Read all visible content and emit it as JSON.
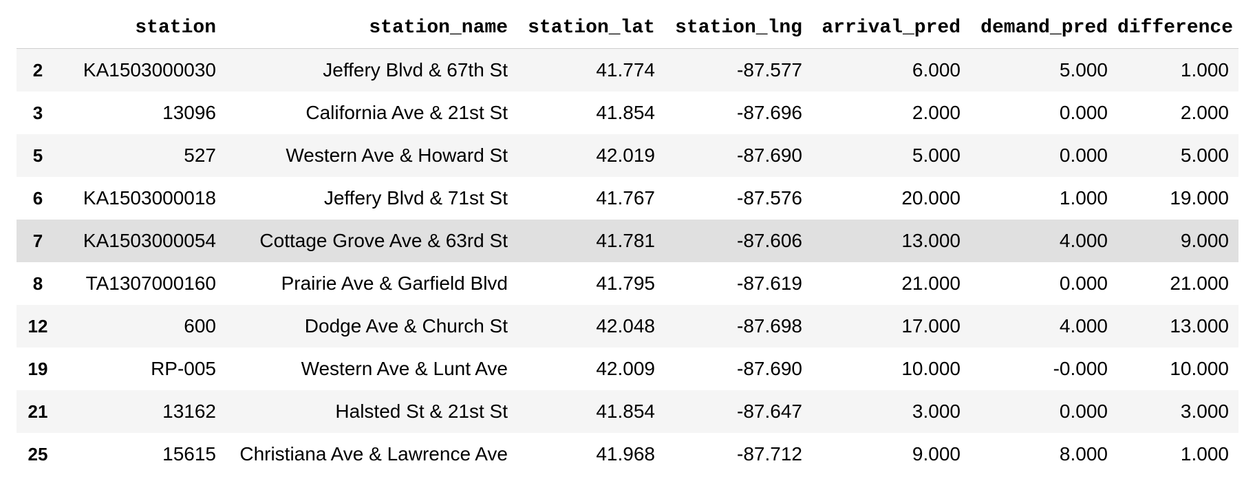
{
  "table": {
    "columns": [
      "",
      "station",
      "station_name",
      "station_lat",
      "station_lng",
      "arrival_pred",
      "demand_pred",
      "difference"
    ],
    "rows": [
      {
        "index": "2",
        "station": "KA1503000030",
        "station_name": "Jeffery Blvd & 67th St",
        "station_lat": "41.774",
        "station_lng": "-87.577",
        "arrival_pred": "6.000",
        "demand_pred": "5.000",
        "difference": "1.000"
      },
      {
        "index": "3",
        "station": "13096",
        "station_name": "California Ave & 21st St",
        "station_lat": "41.854",
        "station_lng": "-87.696",
        "arrival_pred": "2.000",
        "demand_pred": "0.000",
        "difference": "2.000"
      },
      {
        "index": "5",
        "station": "527",
        "station_name": "Western Ave & Howard St",
        "station_lat": "42.019",
        "station_lng": "-87.690",
        "arrival_pred": "5.000",
        "demand_pred": "0.000",
        "difference": "5.000"
      },
      {
        "index": "6",
        "station": "KA1503000018",
        "station_name": "Jeffery Blvd & 71st St",
        "station_lat": "41.767",
        "station_lng": "-87.576",
        "arrival_pred": "20.000",
        "demand_pred": "1.000",
        "difference": "19.000"
      },
      {
        "index": "7",
        "station": "KA1503000054",
        "station_name": "Cottage Grove Ave & 63rd St",
        "station_lat": "41.781",
        "station_lng": "-87.606",
        "arrival_pred": "13.000",
        "demand_pred": "4.000",
        "difference": "9.000"
      },
      {
        "index": "8",
        "station": "TA1307000160",
        "station_name": "Prairie Ave & Garfield Blvd",
        "station_lat": "41.795",
        "station_lng": "-87.619",
        "arrival_pred": "21.000",
        "demand_pred": "0.000",
        "difference": "21.000"
      },
      {
        "index": "12",
        "station": "600",
        "station_name": "Dodge Ave & Church St",
        "station_lat": "42.048",
        "station_lng": "-87.698",
        "arrival_pred": "17.000",
        "demand_pred": "4.000",
        "difference": "13.000"
      },
      {
        "index": "19",
        "station": "RP-005",
        "station_name": "Western Ave & Lunt Ave",
        "station_lat": "42.009",
        "station_lng": "-87.690",
        "arrival_pred": "10.000",
        "demand_pred": "-0.000",
        "difference": "10.000"
      },
      {
        "index": "21",
        "station": "13162",
        "station_name": "Halsted St & 21st St",
        "station_lat": "41.854",
        "station_lng": "-87.647",
        "arrival_pred": "3.000",
        "demand_pred": "0.000",
        "difference": "3.000"
      },
      {
        "index": "25",
        "station": "15615",
        "station_name": "Christiana Ave & Lawrence Ave",
        "station_lat": "41.968",
        "station_lng": "-87.712",
        "arrival_pred": "9.000",
        "demand_pred": "8.000",
        "difference": "1.000"
      }
    ],
    "hovered_row": 4
  },
  "colors": {
    "row_striped": "#f5f5f5",
    "row_plain": "#ffffff",
    "row_hover": "#e0e0e0",
    "header_border": "#cfcfcf"
  }
}
